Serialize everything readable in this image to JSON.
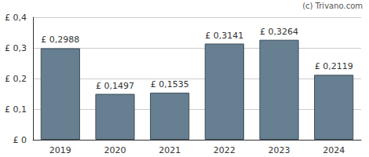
{
  "chart_data": {
    "type": "bar",
    "annotations": [
      "(c) Trivano.com"
    ],
    "categories": [
      "2019",
      "2020",
      "2021",
      "2022",
      "2023",
      "2024"
    ],
    "values": [
      0.2988,
      0.1497,
      0.1535,
      0.3141,
      0.3264,
      0.2119
    ],
    "value_labels": [
      "£ 0,2988",
      "£ 0,1497",
      "£ 0,1535",
      "£ 0,3141",
      "£ 0,3264",
      "£ 0,2119"
    ],
    "data_labels": true,
    "color": "#667f91",
    "ylim": [
      0,
      0.4
    ],
    "yticks": [
      {
        "value": 0,
        "label": "£ 0"
      },
      {
        "value": 0.1,
        "label": "£ 0,1"
      },
      {
        "value": 0.2,
        "label": "£ 0,2"
      },
      {
        "value": 0.3,
        "label": "£ 0,3"
      },
      {
        "value": 0.4,
        "label": "£ 0,4"
      }
    ],
    "grid": true
  }
}
